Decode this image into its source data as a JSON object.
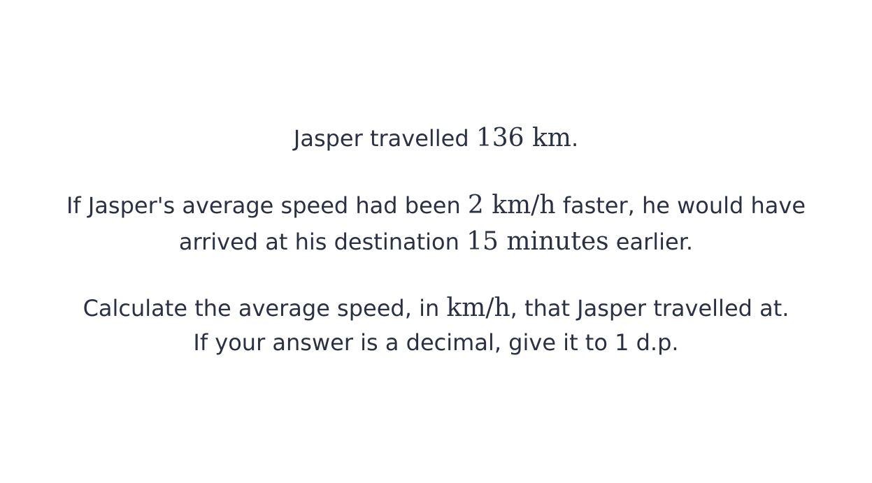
{
  "question": {
    "line1": {
      "text_a": "Jasper travelled ",
      "math_a": "136 km",
      "text_b": "."
    },
    "line2": {
      "text_a": "If Jasper's average speed had been ",
      "math_a": "2 km/h",
      "text_b": " faster, he would have"
    },
    "line3": {
      "text_a": "arrived at his destination ",
      "math_a": "15 minutes",
      "text_b": " earlier."
    },
    "line4": {
      "text_a": "Calculate the average speed, in ",
      "math_a": "km/h",
      "text_b": ", that Jasper travelled at."
    },
    "line5": {
      "text_a": "If your answer is a decimal, give it to 1 d.p."
    }
  }
}
